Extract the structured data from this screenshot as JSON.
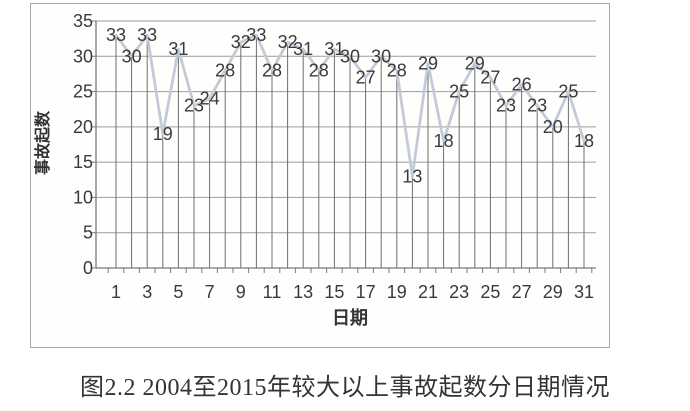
{
  "figure": {
    "caption": "图2.2 2004至2015年较大以上事故起数分日期情况"
  },
  "chart_data": {
    "type": "line",
    "title": "",
    "xlabel": "日期",
    "ylabel": "事故起数",
    "x": [
      1,
      2,
      3,
      4,
      5,
      6,
      7,
      8,
      9,
      10,
      11,
      12,
      13,
      14,
      15,
      16,
      17,
      18,
      19,
      20,
      21,
      22,
      23,
      24,
      25,
      26,
      27,
      28,
      29,
      30,
      31
    ],
    "values": [
      33,
      30,
      33,
      19,
      31,
      23,
      24,
      28,
      32,
      33,
      28,
      32,
      31,
      28,
      31,
      30,
      27,
      30,
      28,
      13,
      29,
      18,
      25,
      29,
      27,
      23,
      26,
      23,
      20,
      25,
      18
    ],
    "xtick_labels": [
      "1",
      "3",
      "5",
      "7",
      "9",
      "11",
      "13",
      "15",
      "17",
      "19",
      "21",
      "23",
      "25",
      "27",
      "29",
      "31"
    ],
    "ylim": [
      0,
      35
    ],
    "ytick_interval": 5,
    "grid": true,
    "drop_lines": true,
    "data_labels": "center",
    "legend_position": "none",
    "colors": {
      "series_line": "#c3cbd9",
      "drop_line": "#6e6e6e",
      "gridline": "#9b9b9b",
      "axis": "#7a7a7a",
      "label_text": "#3a3a3a",
      "frame_border": "#a9a9a9"
    }
  }
}
